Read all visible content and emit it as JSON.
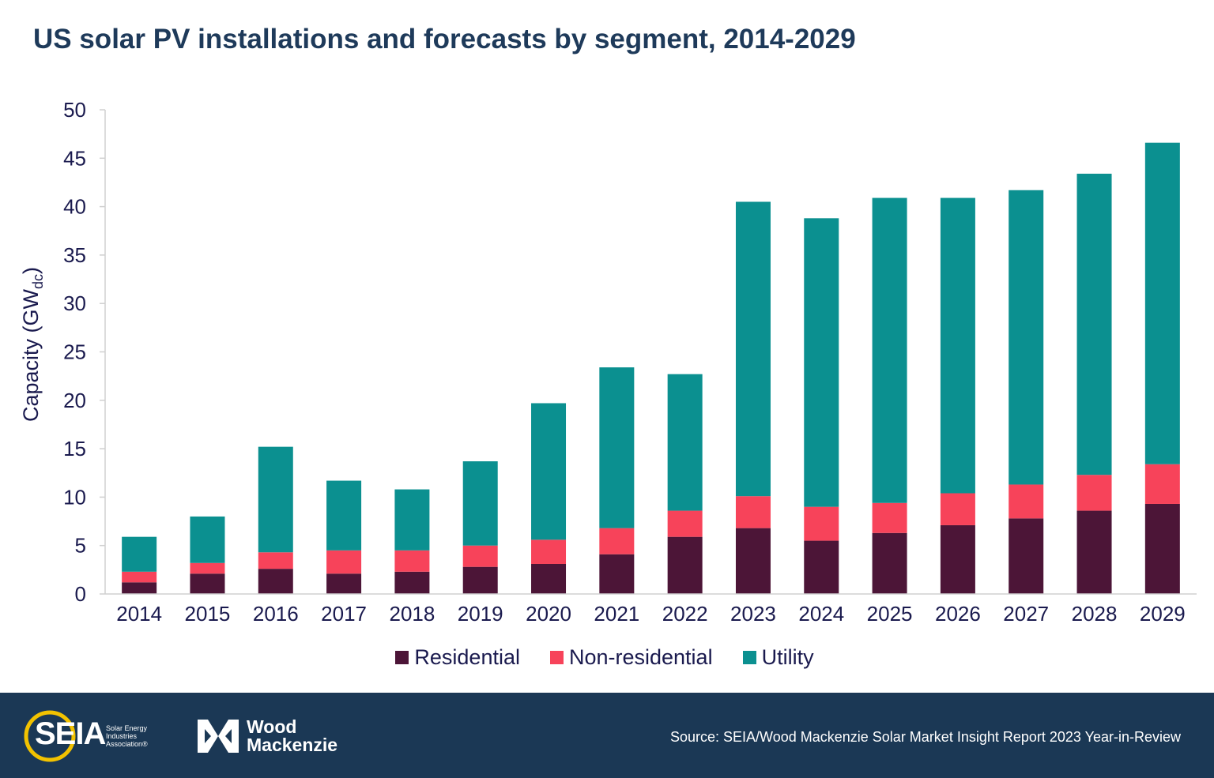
{
  "title": "US solar PV installations and forecasts by segment, 2014-2029",
  "chart_data": {
    "type": "bar",
    "stacked": true,
    "title": "US solar PV installations and forecasts by segment, 2014-2029",
    "xlabel": "",
    "ylabel": "Capacity (GWdc)",
    "ylabel_main": "Capacity (GW",
    "ylabel_sub": "dc",
    "ylabel_close": ")",
    "ylim": [
      0,
      50
    ],
    "yticks": [
      0,
      5,
      10,
      15,
      20,
      25,
      30,
      35,
      40,
      45,
      50
    ],
    "grid": false,
    "legend_position": "bottom",
    "categories": [
      "2014",
      "2015",
      "2016",
      "2017",
      "2018",
      "2019",
      "2020",
      "2021",
      "2022",
      "2023",
      "2024",
      "2025",
      "2026",
      "2027",
      "2028",
      "2029"
    ],
    "series": [
      {
        "name": "Residential",
        "color": "#4c1537",
        "values": [
          1.2,
          2.1,
          2.6,
          2.1,
          2.3,
          2.8,
          3.1,
          4.1,
          5.9,
          6.8,
          5.5,
          6.3,
          7.1,
          7.8,
          8.6,
          9.3
        ]
      },
      {
        "name": "Non-residential",
        "color": "#f7435a",
        "values": [
          1.1,
          1.1,
          1.7,
          2.4,
          2.2,
          2.2,
          2.5,
          2.7,
          2.7,
          3.3,
          3.5,
          3.1,
          3.3,
          3.5,
          3.7,
          4.1
        ]
      },
      {
        "name": "Utility",
        "color": "#0b9090",
        "values": [
          3.6,
          4.8,
          10.9,
          7.2,
          6.3,
          8.7,
          14.1,
          16.6,
          14.1,
          30.4,
          29.8,
          31.5,
          30.5,
          30.4,
          31.1,
          33.2
        ]
      }
    ]
  },
  "footer": {
    "seia_logo_text": "SEIA",
    "seia_tagline": "Solar Energy Industries Association®",
    "wm_line1": "Wood",
    "wm_line2": "Mackenzie",
    "source": "Source: SEIA/Wood Mackenzie Solar Market Insight Report 2023 Year-in-Review"
  }
}
